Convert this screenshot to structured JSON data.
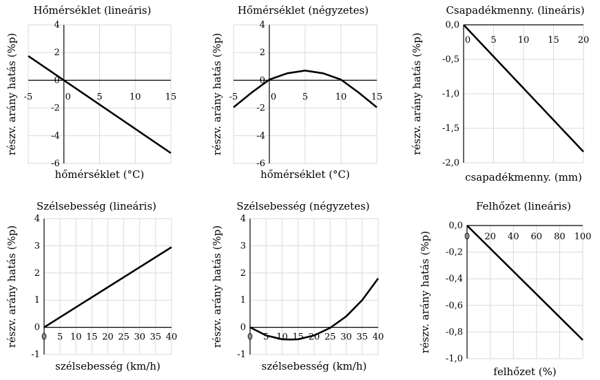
{
  "chart_data": [
    {
      "type": "line",
      "title": "Hőmérséklet (lineáris)",
      "xlabel": "hőmérséklet (°C)",
      "ylabel": "részv. arány hatás (%p)",
      "xlim": [
        -5,
        15
      ],
      "ylim": [
        -6,
        4
      ],
      "xticks": [
        "-5",
        "0",
        "5",
        "10",
        "15"
      ],
      "xtick_values": [
        -5,
        0,
        5,
        10,
        15
      ],
      "yticks": [
        "4",
        "2",
        "0",
        "-2",
        "-4",
        "-6"
      ],
      "ytick_values": [
        4,
        2,
        0,
        -2,
        -4,
        -6
      ],
      "series": [
        {
          "x": [
            -5,
            15
          ],
          "y": [
            1.75,
            -5.25
          ]
        }
      ]
    },
    {
      "type": "line",
      "title": "Hőmérséklet (négyzetes)",
      "xlabel": "hőmérséklet (°C)",
      "ylabel": "részv. arány hatás (%p)",
      "xlim": [
        -5,
        15
      ],
      "ylim": [
        -6,
        4
      ],
      "xticks": [
        "-5",
        "0",
        "5",
        "10",
        "15"
      ],
      "xtick_values": [
        -5,
        0,
        5,
        10,
        15
      ],
      "yticks": [
        "4",
        "2",
        "0",
        "-2",
        "-4",
        "-6"
      ],
      "ytick_values": [
        4,
        2,
        0,
        -2,
        -4,
        -6
      ],
      "series": [
        {
          "x": [
            -5,
            -2.5,
            0,
            2.5,
            5,
            7.5,
            10,
            12.5,
            15
          ],
          "y": [
            -1.95,
            -0.9,
            0.05,
            0.5,
            0.7,
            0.5,
            0.05,
            -0.9,
            -1.95
          ]
        }
      ]
    },
    {
      "type": "line",
      "title": "Csapadékmenny. (lineáris)",
      "xlabel": "csapadékmenny. (mm)",
      "ylabel": "részv. arány hatás (%p)",
      "xlim": [
        0,
        20
      ],
      "ylim": [
        -2,
        0
      ],
      "xticks": [
        "0",
        "5",
        "10",
        "15",
        "20"
      ],
      "xtick_values": [
        0,
        5,
        10,
        15,
        20
      ],
      "yticks": [
        "0,0",
        "-0,5",
        "-1,0",
        "-1,5",
        "-2,0"
      ],
      "ytick_values": [
        0,
        -0.5,
        -1,
        -1.5,
        -2
      ],
      "series": [
        {
          "x": [
            0,
            20
          ],
          "y": [
            0,
            -1.84
          ]
        }
      ]
    },
    {
      "type": "line",
      "title": "Szélsebesség (lineáris)",
      "xlabel": "szélsebesség (km/h)",
      "ylabel": "részv. arány hatás (%p)",
      "xlim": [
        0,
        40
      ],
      "ylim": [
        -1,
        4
      ],
      "xticks": [
        "0",
        "5",
        "10",
        "15",
        "20",
        "25",
        "30",
        "35",
        "40"
      ],
      "xtick_values": [
        0,
        5,
        10,
        15,
        20,
        25,
        30,
        35,
        40
      ],
      "yticks": [
        "4",
        "3",
        "2",
        "1",
        "0",
        "-1"
      ],
      "ytick_values": [
        4,
        3,
        2,
        1,
        0,
        -1
      ],
      "series": [
        {
          "x": [
            0,
            40
          ],
          "y": [
            0,
            2.95
          ]
        }
      ]
    },
    {
      "type": "line",
      "title": "Szélsebesség (négyzetes)",
      "xlabel": "szélsebesség (km/h)",
      "ylabel": "részv. arány hatás (%p)",
      "xlim": [
        0,
        40
      ],
      "ylim": [
        -1,
        4
      ],
      "xticks": [
        "0",
        "5",
        "10",
        "15",
        "20",
        "25",
        "30",
        "35",
        "40"
      ],
      "xtick_values": [
        0,
        5,
        10,
        15,
        20,
        25,
        30,
        35,
        40
      ],
      "yticks": [
        "4",
        "3",
        "2",
        "1",
        "0",
        "-1"
      ],
      "ytick_values": [
        4,
        3,
        2,
        1,
        0,
        -1
      ],
      "series": [
        {
          "x": [
            0,
            5,
            10,
            12.5,
            15,
            20,
            25,
            30,
            35,
            40
          ],
          "y": [
            0,
            -0.3,
            -0.44,
            -0.45,
            -0.44,
            -0.3,
            -0.02,
            0.4,
            1.0,
            1.8
          ]
        }
      ]
    },
    {
      "type": "line",
      "title": "Felhőzet (lineáris)",
      "xlabel": "felhőzet (%)",
      "ylabel": "részv. arány hatás (%p)",
      "xlim": [
        0,
        100
      ],
      "ylim": [
        -1,
        0
      ],
      "xticks": [
        "0",
        "20",
        "40",
        "60",
        "80",
        "100"
      ],
      "xtick_values": [
        0,
        20,
        40,
        60,
        80,
        100
      ],
      "yticks": [
        "0,0",
        "-0,2",
        "-0,4",
        "-0,6",
        "-0,8",
        "-1,0"
      ],
      "ytick_values": [
        0,
        -0.2,
        -0.4,
        -0.6,
        -0.8,
        -1
      ],
      "series": [
        {
          "x": [
            0,
            100
          ],
          "y": [
            0,
            -0.86
          ]
        }
      ]
    }
  ]
}
